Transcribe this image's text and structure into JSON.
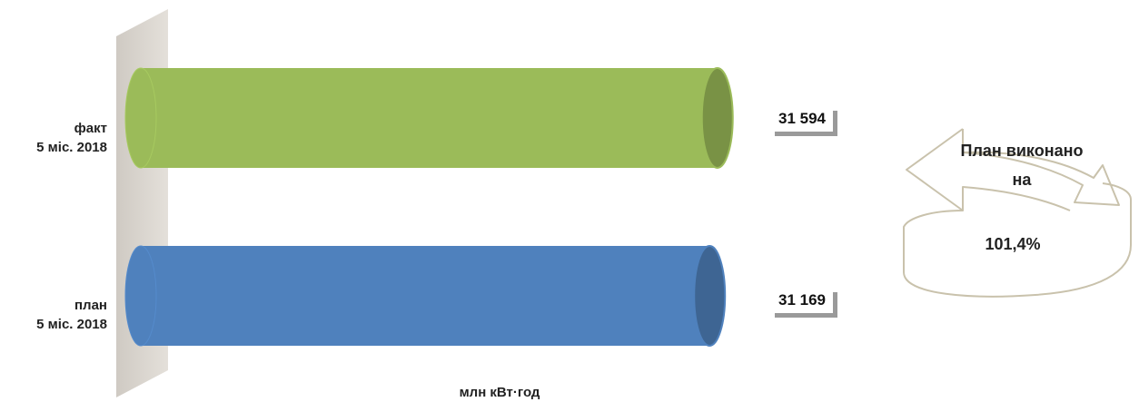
{
  "chart_data": {
    "type": "bar",
    "orientation": "horizontal",
    "style": "3d-cylinder",
    "categories": [
      [
        "факт",
        "5 міс. 2018"
      ],
      [
        "план",
        "5 міс. 2018"
      ]
    ],
    "values": [
      31594,
      31169
    ],
    "value_labels": [
      "31 594",
      "31 169"
    ],
    "colors": [
      "#9bbb59",
      "#4f81bd"
    ],
    "xlabel": "млн кВт·год",
    "xlim": [
      0,
      33000
    ],
    "grid": false
  },
  "callout": {
    "line1": "План виконано",
    "line2": "на",
    "value": "101,4%"
  }
}
